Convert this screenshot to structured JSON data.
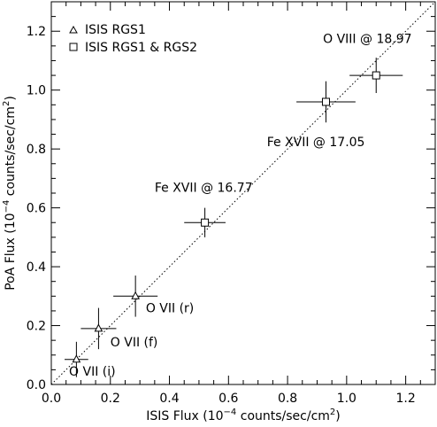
{
  "chart_data": {
    "type": "scatter",
    "title": "",
    "xlabel": "ISIS Flux (10",
    "xlabel_exp": "−4",
    "xlabel_tail": " counts/sec/cm",
    "xlabel_sq": "2",
    "xlabel_end": ")",
    "ylabel": "PoA Flux (10",
    "ylabel_exp": "−4",
    "ylabel_tail": " counts/sec/cm",
    "ylabel_sq": "2",
    "ylabel_end": ")",
    "xlim": [
      0.0,
      1.3
    ],
    "ylim": [
      0.0,
      1.3
    ],
    "xticks": [
      {
        "v": 0.0,
        "label": "0.0"
      },
      {
        "v": 0.2,
        "label": "0.2"
      },
      {
        "v": 0.4,
        "label": "0.4"
      },
      {
        "v": 0.6,
        "label": "0.6"
      },
      {
        "v": 0.8,
        "label": "0.8"
      },
      {
        "v": 1.0,
        "label": "1.0"
      },
      {
        "v": 1.2,
        "label": "1.2"
      }
    ],
    "yticks": [
      {
        "v": 0.0,
        "label": "0.0"
      },
      {
        "v": 0.2,
        "label": "0.2"
      },
      {
        "v": 0.4,
        "label": "0.4"
      },
      {
        "v": 0.6,
        "label": "0.6"
      },
      {
        "v": 0.8,
        "label": "0.8"
      },
      {
        "v": 1.0,
        "label": "1.0"
      },
      {
        "v": 1.2,
        "label": "1.2"
      }
    ],
    "reference_line": {
      "x": [
        0.0,
        1.3
      ],
      "y": [
        0.0,
        1.3
      ],
      "style": "dotted"
    },
    "legend_position": "top-left",
    "series": [
      {
        "name": "ISIS RGS1",
        "marker": "triangle",
        "points": [
          {
            "x": 0.085,
            "y": 0.085,
            "xerr": 0.04,
            "yerr": 0.06,
            "label": "O VII (i)"
          },
          {
            "x": 0.16,
            "y": 0.19,
            "xerr": 0.06,
            "yerr": 0.07,
            "label": "O VII (f)"
          },
          {
            "x": 0.285,
            "y": 0.3,
            "xerr": 0.075,
            "yerr": 0.07,
            "label": "O VII (r)"
          }
        ]
      },
      {
        "name": "ISIS RGS1 & RGS2",
        "marker": "square",
        "points": [
          {
            "x": 0.52,
            "y": 0.55,
            "xerr": 0.07,
            "yerr": 0.05,
            "label": "Fe XVII @ 16.77"
          },
          {
            "x": 0.93,
            "y": 0.96,
            "xerr": 0.1,
            "yerr": 0.07,
            "label": "Fe XVII @ 17.05"
          },
          {
            "x": 1.1,
            "y": 1.05,
            "xerr": 0.09,
            "yerr": 0.06,
            "label": "O VIII @ 18.97"
          }
        ]
      }
    ]
  }
}
